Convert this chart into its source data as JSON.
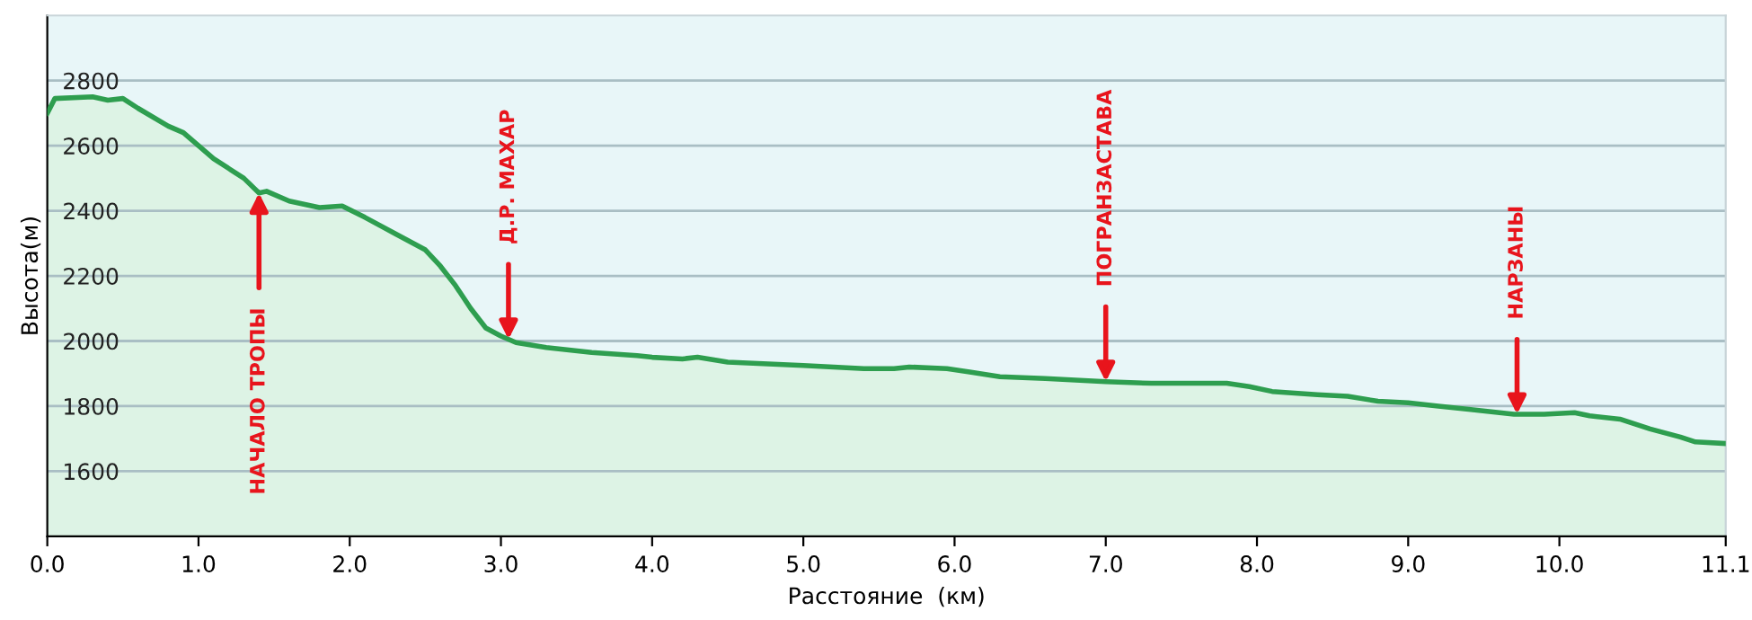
{
  "chart_data": {
    "type": "area",
    "xlabel": "Расстояние  (км)",
    "ylabel": "Высота(м)",
    "x": [
      0,
      0.05,
      0.3,
      0.4,
      0.5,
      0.6,
      0.8,
      0.9,
      1.0,
      1.1,
      1.2,
      1.3,
      1.4,
      1.45,
      1.6,
      1.8,
      1.95,
      2.1,
      2.3,
      2.5,
      2.6,
      2.7,
      2.8,
      2.9,
      3.0,
      3.1,
      3.3,
      3.6,
      3.9,
      4.0,
      4.2,
      4.3,
      4.5,
      5.0,
      5.4,
      5.6,
      5.7,
      5.95,
      6.1,
      6.3,
      6.6,
      7.0,
      7.3,
      7.6,
      7.8,
      7.95,
      8.1,
      8.4,
      8.6,
      8.8,
      9.0,
      9.2,
      9.4,
      9.7,
      9.9,
      10.1,
      10.2,
      10.4,
      10.6,
      10.8,
      10.9,
      11.1
    ],
    "series": [
      {
        "color": "#2e9e4f",
        "values": [
          2700,
          2745,
          2750,
          2740,
          2745,
          2715,
          2660,
          2640,
          2600,
          2560,
          2530,
          2500,
          2455,
          2460,
          2430,
          2410,
          2415,
          2380,
          2330,
          2280,
          2230,
          2170,
          2100,
          2040,
          2015,
          1995,
          1980,
          1965,
          1955,
          1950,
          1945,
          1950,
          1935,
          1925,
          1915,
          1915,
          1920,
          1915,
          1905,
          1890,
          1885,
          1875,
          1870,
          1870,
          1870,
          1860,
          1845,
          1835,
          1830,
          1815,
          1810,
          1800,
          1790,
          1775,
          1775,
          1780,
          1770,
          1760,
          1730,
          1705,
          1690,
          1685
        ]
      }
    ],
    "xlim": [
      0,
      11.1
    ],
    "ylim": [
      1400,
      3000
    ],
    "xticks": [
      {
        "value": 0,
        "label": "0.0"
      },
      {
        "value": 1,
        "label": "1.0"
      },
      {
        "value": 2,
        "label": "2.0"
      },
      {
        "value": 3,
        "label": "3.0"
      },
      {
        "value": 4,
        "label": "4.0"
      },
      {
        "value": 5,
        "label": "5.0"
      },
      {
        "value": 6,
        "label": "6.0"
      },
      {
        "value": 7,
        "label": "7.0"
      },
      {
        "value": 8,
        "label": "8.0"
      },
      {
        "value": 9,
        "label": "9.0"
      },
      {
        "value": 10,
        "label": "10.0"
      },
      11.1
    ],
    "yticks": [
      1600,
      1800,
      2000,
      2200,
      2400,
      2600,
      2800
    ],
    "grid": "y",
    "annotations": [
      {
        "text": "НАЧАЛО ТРОПЫ",
        "x": 1.4,
        "y": 2455
      },
      {
        "text": "Д.Р. МАХАР",
        "x": 3.05,
        "y": 2005
      },
      {
        "text": "ПОГРАНЗАСТАВА",
        "x": 7.0,
        "y": 1875
      },
      {
        "text": "НАРЗАНЫ",
        "x": 9.72,
        "y": 1775
      }
    ]
  }
}
